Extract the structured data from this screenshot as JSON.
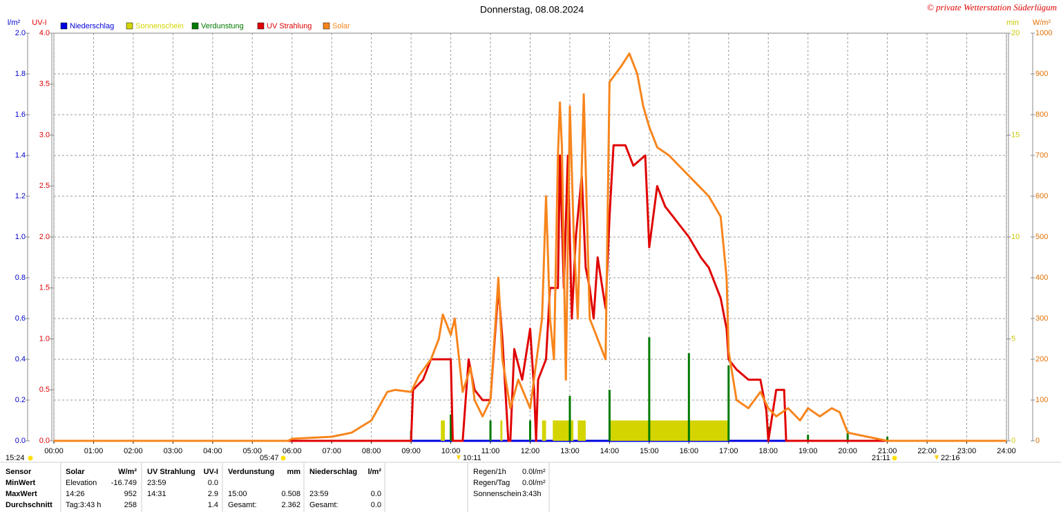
{
  "chart_data": {
    "type": "line",
    "title": "Donnerstag, 08.08.2024",
    "copyright": "© private Wetterstation Süderlügum",
    "grid": true,
    "xlim": [
      0,
      24
    ],
    "xticks": [
      {
        "value": 0,
        "label": "00:00"
      },
      {
        "value": 1,
        "label": "01:00"
      },
      {
        "value": 2,
        "label": "02:00"
      },
      {
        "value": 3,
        "label": "03:00"
      },
      {
        "value": 4,
        "label": "04:00"
      },
      {
        "value": 5,
        "label": "05:00"
      },
      {
        "value": 6,
        "label": "06:00"
      },
      {
        "value": 7,
        "label": "07:00"
      },
      {
        "value": 8,
        "label": "08:00"
      },
      {
        "value": 9,
        "label": "09:00"
      },
      {
        "value": 10,
        "label": "10:00"
      },
      {
        "value": 11,
        "label": "11:00"
      },
      {
        "value": 12,
        "label": "12:00"
      },
      {
        "value": 13,
        "label": "13:00"
      },
      {
        "value": 14,
        "label": "14:00"
      },
      {
        "value": 15,
        "label": "15:00"
      },
      {
        "value": 16,
        "label": "16:00"
      },
      {
        "value": 17,
        "label": "17:00"
      },
      {
        "value": 18,
        "label": "18:00"
      },
      {
        "value": 19,
        "label": "19:00"
      },
      {
        "value": 20,
        "label": "20:00"
      },
      {
        "value": 21,
        "label": "21:00"
      },
      {
        "value": 22,
        "label": "22:00"
      },
      {
        "value": 23,
        "label": "23:00"
      },
      {
        "value": 24,
        "label": "24:00"
      }
    ],
    "yaxes": [
      {
        "label": "l/m²",
        "color": "#0000cc",
        "ylim": [
          0,
          2
        ],
        "yticks": [
          {
            "value": 0,
            "label": "0.0"
          },
          0.2,
          0.4,
          0.6,
          0.8,
          {
            "value": 1,
            "label": "1.0"
          },
          1.2,
          1.4,
          1.6,
          1.8,
          {
            "value": 2,
            "label": "2.0"
          }
        ]
      },
      {
        "label": "UV-I",
        "color": "#e00000",
        "ylim": [
          0,
          4
        ],
        "yticks": [
          {
            "value": 0,
            "label": "0.0"
          },
          0.5,
          {
            "value": 1,
            "label": "1.0"
          },
          1.5,
          {
            "value": 2,
            "label": "2.0"
          },
          2.5,
          {
            "value": 3,
            "label": "3.0"
          },
          3.5,
          {
            "value": 4,
            "label": "4.0"
          }
        ]
      },
      {
        "label": "min",
        "color": "#c8c800",
        "ylim": [
          0,
          20
        ],
        "yticks": [
          0,
          5,
          10,
          15,
          20
        ]
      },
      {
        "label": "W/m²",
        "color": "#e07000",
        "ylim": [
          0,
          1000
        ],
        "yticks": [
          0,
          100,
          200,
          300,
          400,
          500,
          600,
          700,
          800,
          900,
          1000
        ]
      }
    ],
    "series": [
      {
        "name": "Niederschlag",
        "color": "#0000dd",
        "axis": 0,
        "kind": "line",
        "x": [
          0,
          24
        ],
        "values": [
          0,
          0
        ]
      },
      {
        "name": "Sonnenschein",
        "color": "#d4d400",
        "axis": 2,
        "kind": "block",
        "x_start": [
          9.75,
          11.25,
          12.3,
          12.57,
          13.2,
          14.0
        ],
        "x_end": [
          9.85,
          11.3,
          12.4,
          13.09,
          13.4,
          17.0
        ],
        "values": [
          1,
          1,
          1,
          1,
          1,
          1
        ]
      },
      {
        "name": "Verdunstung",
        "color": "#007a00",
        "axis": 0,
        "kind": "spike",
        "x": [
          9,
          10,
          11,
          12,
          13,
          14,
          15,
          16,
          17,
          18,
          19,
          20,
          21
        ],
        "values": [
          0.05,
          0.13,
          0.1,
          0.1,
          0.22,
          0.25,
          0.508,
          0.43,
          0.37,
          0.07,
          0.03,
          0.05,
          0.02
        ]
      },
      {
        "name": "UV Strahlung",
        "color": "#e00000",
        "axis": 1,
        "kind": "line",
        "x": [
          0,
          9,
          9.05,
          9.3,
          9.5,
          9.8,
          10,
          10.05,
          10.3,
          10.45,
          10.6,
          10.8,
          11,
          11.2,
          11.3,
          11.45,
          11.5,
          11.6,
          11.8,
          12,
          12.1,
          12.15,
          12.2,
          12.4,
          12.5,
          12.7,
          12.75,
          12.85,
          12.95,
          13.05,
          13.15,
          13.3,
          13.4,
          13.5,
          13.6,
          13.7,
          13.9,
          14,
          14.1,
          14.4,
          14.6,
          14.9,
          15,
          15.2,
          15.4,
          15.6,
          16,
          16.3,
          16.5,
          16.8,
          16.95,
          17,
          17.2,
          17.5,
          17.8,
          17.95,
          18,
          18.2,
          18.4,
          18.45,
          24
        ],
        "values": [
          0,
          0,
          0.5,
          0.6,
          0.8,
          0.8,
          0.8,
          0,
          0,
          0.8,
          0.5,
          0.4,
          0.4,
          1.5,
          1.0,
          0,
          0,
          0.9,
          0.6,
          1.1,
          0.5,
          0,
          0.6,
          0.8,
          1.5,
          1.5,
          2.8,
          1.5,
          2.8,
          1.2,
          2.0,
          2.6,
          1.7,
          1.5,
          1.2,
          1.8,
          1.3,
          2.2,
          2.9,
          2.9,
          2.7,
          2.8,
          1.9,
          2.5,
          2.3,
          2.2,
          2.0,
          1.8,
          1.7,
          1.4,
          1.1,
          0.8,
          0.7,
          0.6,
          0.6,
          0.3,
          0,
          0.5,
          0.5,
          0,
          0
        ]
      },
      {
        "name": "Solar",
        "color": "#f7851c",
        "axis": 3,
        "kind": "line",
        "x": [
          0,
          5.9,
          6,
          7,
          7.5,
          8,
          8.4,
          8.6,
          9,
          9.2,
          9.5,
          9.7,
          9.8,
          10,
          10.1,
          10.3,
          10.5,
          10.6,
          10.8,
          11,
          11.2,
          11.3,
          11.5,
          11.7,
          12,
          12.3,
          12.4,
          12.5,
          12.6,
          12.7,
          12.75,
          12.8,
          12.9,
          13,
          13.1,
          13.2,
          13.35,
          13.5,
          13.7,
          13.9,
          14,
          14.3,
          14.5,
          14.7,
          14.85,
          15,
          15.2,
          15.5,
          16,
          16.5,
          16.8,
          16.95,
          17,
          17.2,
          17.5,
          17.8,
          18,
          18.2,
          18.5,
          18.8,
          19,
          19.3,
          19.6,
          19.8,
          20,
          20.5,
          21,
          24
        ],
        "values": [
          0,
          0,
          5,
          10,
          20,
          50,
          120,
          125,
          120,
          160,
          200,
          250,
          310,
          260,
          300,
          120,
          180,
          100,
          60,
          100,
          400,
          200,
          80,
          150,
          80,
          300,
          600,
          300,
          200,
          700,
          830,
          720,
          150,
          820,
          500,
          300,
          850,
          300,
          250,
          200,
          880,
          920,
          950,
          900,
          820,
          770,
          720,
          700,
          650,
          600,
          550,
          400,
          220,
          100,
          80,
          120,
          80,
          60,
          80,
          50,
          80,
          60,
          80,
          70,
          20,
          10,
          0,
          0
        ]
      }
    ],
    "sun_times": [
      "15:24",
      "05:47",
      "10:11",
      "21:11",
      "22:16"
    ]
  },
  "stats": {
    "header": [
      "Sensor",
      "Solar",
      "W/m²",
      "UV Strahlung",
      "UV-I",
      "Verdunstung",
      "mm",
      "Niederschlag",
      "l/m²"
    ],
    "rows": [
      [
        "MinWert",
        "Elevation",
        "-16.749",
        "23:59",
        "0.0",
        null,
        null,
        null,
        null
      ],
      [
        "MaxWert",
        "14:26",
        "952",
        "14:31",
        "2.9",
        "15:00",
        "0.508",
        "23:59",
        "0.0"
      ],
      [
        "Durchschnitt",
        "Tag:3:43 h",
        "258",
        null,
        "1.4",
        "Gesamt:",
        "2.362",
        "Gesamt:",
        "0.0"
      ]
    ],
    "summary": [
      [
        "Regen/1h",
        "0.0l/m²"
      ],
      [
        "Regen/Tag",
        "0.0l/m²"
      ],
      [
        "Sonnenschein",
        "3:43h"
      ]
    ]
  }
}
